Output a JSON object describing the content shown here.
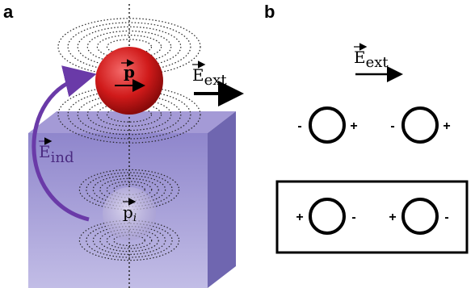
{
  "panel_a": {
    "label": "a",
    "dipole": "p",
    "image_dipole": "p",
    "image_subscript": "i",
    "field_ext": "E",
    "field_ext_subscript": "ext",
    "field_ind": "E",
    "field_ind_subscript": "ind"
  },
  "panel_b": {
    "label": "b",
    "field": "E",
    "field_subscript": "ext",
    "top_row": [
      {
        "left": "-",
        "right": "+"
      },
      {
        "left": "-",
        "right": "+"
      }
    ],
    "bottom_row": [
      {
        "left": "+",
        "right": "-"
      },
      {
        "left": "+",
        "right": "-"
      }
    ]
  }
}
